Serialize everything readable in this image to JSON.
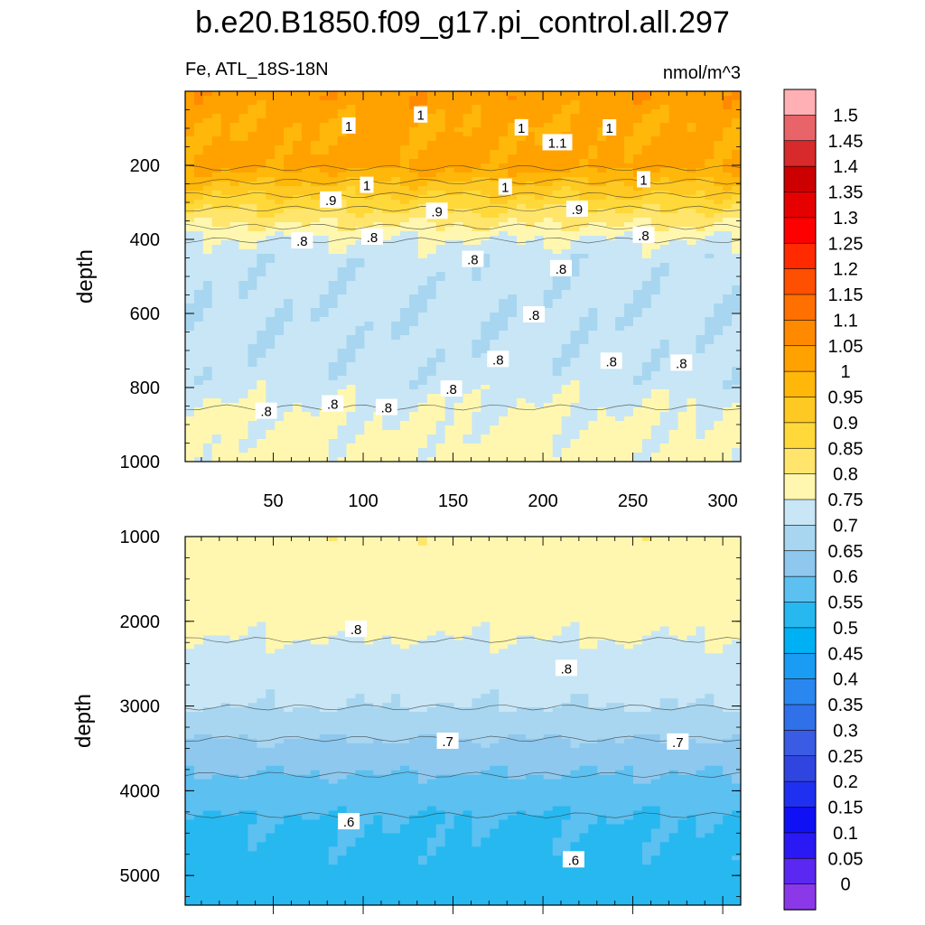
{
  "title": "b.e20.B1850.f09_g17.pi_control.all.297",
  "subtitle_left": "Fe, ATL_18S-18N",
  "subtitle_right": "nmol/m^3",
  "chart_data": [
    {
      "type": "heatmap",
      "panel": "upper",
      "ylabel": "depth",
      "xlim": [
        1,
        310
      ],
      "ylim": [
        1000,
        0
      ],
      "y_reversed": true,
      "x_ticks": [
        "50",
        "100",
        "150",
        "200",
        "250",
        "300"
      ],
      "x_tick_values": [
        50,
        100,
        150,
        200,
        250,
        300
      ],
      "y_ticks": [
        "200",
        "400",
        "600",
        "800",
        "1000"
      ],
      "y_tick_values": [
        200,
        400,
        600,
        800,
        1000
      ],
      "depth_profile": [
        {
          "depth": 20,
          "fe": 1.08
        },
        {
          "depth": 100,
          "fe": 1.05
        },
        {
          "depth": 200,
          "fe": 1.07
        },
        {
          "depth": 260,
          "fe": 0.98
        },
        {
          "depth": 320,
          "fe": 0.9
        },
        {
          "depth": 400,
          "fe": 0.8
        },
        {
          "depth": 450,
          "fe": 0.77
        },
        {
          "depth": 600,
          "fe": 0.76
        },
        {
          "depth": 780,
          "fe": 0.77
        },
        {
          "depth": 850,
          "fe": 0.8
        },
        {
          "depth": 1000,
          "fe": 0.82
        }
      ],
      "contour_labels": [
        {
          "text": "1",
          "x": 92,
          "y": 95
        },
        {
          "text": "1",
          "x": 132,
          "y": 65
        },
        {
          "text": "1",
          "x": 188,
          "y": 100
        },
        {
          "text": "1.1",
          "x": 208,
          "y": 140
        },
        {
          "text": "1",
          "x": 237,
          "y": 100
        },
        {
          "text": "1",
          "x": 102,
          "y": 255
        },
        {
          "text": "1",
          "x": 179,
          "y": 260
        },
        {
          "text": "1",
          "x": 256,
          "y": 240
        },
        {
          "text": ".9",
          "x": 82,
          "y": 295
        },
        {
          "text": ".9",
          "x": 141,
          "y": 325
        },
        {
          "text": ".9",
          "x": 219,
          "y": 320
        },
        {
          "text": ".8",
          "x": 66,
          "y": 405
        },
        {
          "text": ".8",
          "x": 105,
          "y": 395
        },
        {
          "text": ".8",
          "x": 161,
          "y": 455
        },
        {
          "text": ".8",
          "x": 210,
          "y": 480
        },
        {
          "text": ".8",
          "x": 256,
          "y": 390
        },
        {
          "text": ".8",
          "x": 195,
          "y": 605
        },
        {
          "text": ".8",
          "x": 175,
          "y": 725
        },
        {
          "text": ".8",
          "x": 238,
          "y": 730
        },
        {
          "text": ".8",
          "x": 277,
          "y": 735
        },
        {
          "text": ".8",
          "x": 149,
          "y": 805
        },
        {
          "text": ".8",
          "x": 83,
          "y": 845
        },
        {
          "text": ".8",
          "x": 113,
          "y": 855
        },
        {
          "text": ".8",
          "x": 46,
          "y": 865
        }
      ]
    },
    {
      "type": "heatmap",
      "panel": "lower",
      "ylabel": "depth",
      "xlim": [
        1,
        310
      ],
      "ylim": [
        5350,
        1000
      ],
      "y_reversed": true,
      "y_ticks": [
        "1000",
        "2000",
        "3000",
        "4000",
        "5000"
      ],
      "y_tick_values": [
        1000,
        2000,
        3000,
        4000,
        5000
      ],
      "depth_profile": [
        {
          "depth": 1000,
          "fe": 0.84
        },
        {
          "depth": 1700,
          "fe": 0.83
        },
        {
          "depth": 2200,
          "fe": 0.8
        },
        {
          "depth": 3000,
          "fe": 0.75
        },
        {
          "depth": 3400,
          "fe": 0.7
        },
        {
          "depth": 3700,
          "fe": 0.66
        },
        {
          "depth": 4300,
          "fe": 0.6
        },
        {
          "depth": 5350,
          "fe": 0.58
        }
      ],
      "contour_labels": [
        {
          "text": ".8",
          "x": 96,
          "y": 2100
        },
        {
          "text": ".8",
          "x": 213,
          "y": 2560
        },
        {
          "text": ".7",
          "x": 147,
          "y": 3420
        },
        {
          "text": ".7",
          "x": 275,
          "y": 3430
        },
        {
          "text": ".6",
          "x": 92,
          "y": 4370
        },
        {
          "text": ".6",
          "x": 217,
          "y": 4820
        }
      ]
    }
  ],
  "colorbar": {
    "labels": [
      "1.5",
      "1.45",
      "1.4",
      "1.35",
      "1.3",
      "1.25",
      "1.2",
      "1.15",
      "1.1",
      "1.05",
      "1",
      "0.95",
      "0.9",
      "0.85",
      "0.8",
      "0.75",
      "0.7",
      "0.65",
      "0.6",
      "0.55",
      "0.5",
      "0.45",
      "0.4",
      "0.35",
      "0.3",
      "0.25",
      "0.2",
      "0.15",
      "0.1",
      "0.05",
      "0"
    ],
    "colors_top_to_bottom": [
      "#ffb0b4",
      "#e86468",
      "#d82a2a",
      "#cc0000",
      "#e60000",
      "#ff0000",
      "#ff2a00",
      "#ff4f00",
      "#ff7000",
      "#ff8a00",
      "#ffa200",
      "#ffb70a",
      "#ffc923",
      "#ffd93a",
      "#ffe56b",
      "#fff7b0",
      "#c8e6f5",
      "#a8d6f0",
      "#8ec8ee",
      "#5cc0f0",
      "#27b8f0",
      "#00b0f5",
      "#1a9cf5",
      "#2a87f0",
      "#3070e8",
      "#3a5ce4",
      "#3045e0",
      "#2030f0",
      "#1010f5",
      "#2a18f5",
      "#5a28f0",
      "#8a38e8"
    ]
  }
}
